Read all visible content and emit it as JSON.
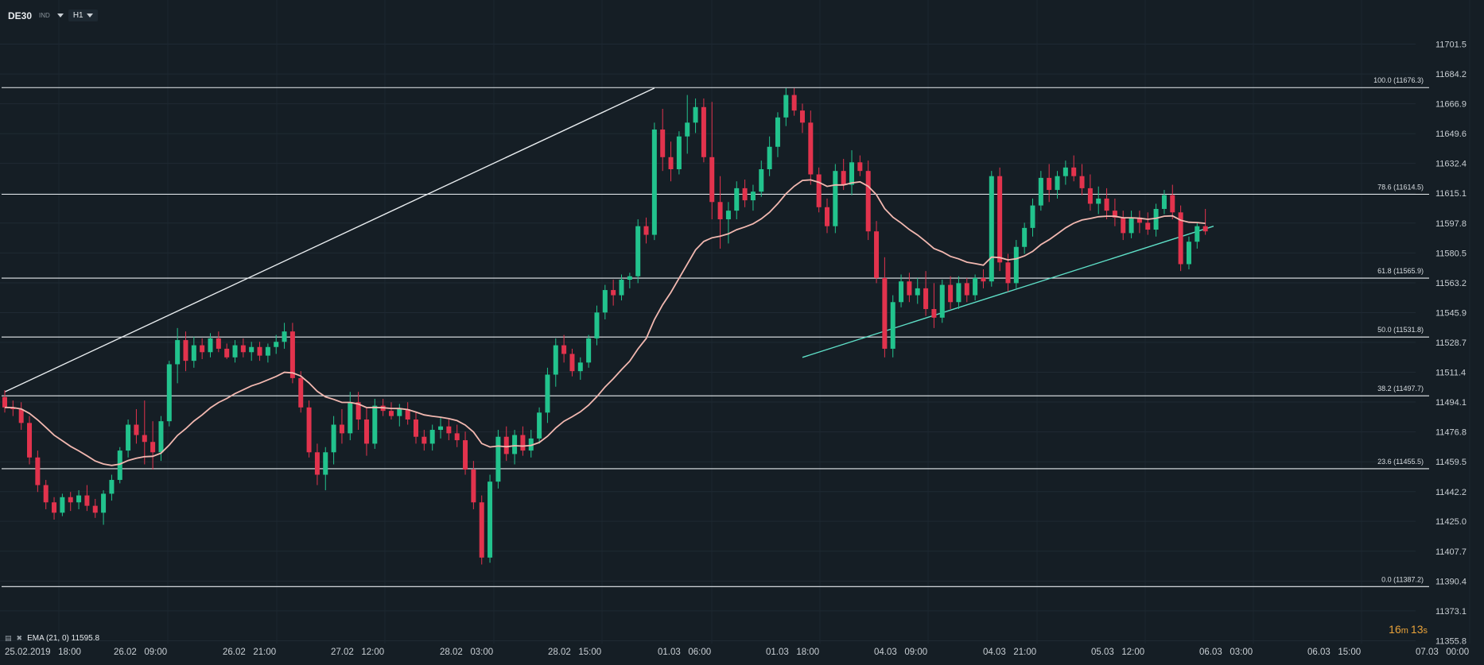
{
  "toolbar": {
    "symbol": "DE30",
    "badge": "IND",
    "timeframe": "H1"
  },
  "indicator": {
    "label": "EMA (21, 0) 11595.8"
  },
  "countdown": {
    "minutes": "16",
    "min_unit": "m",
    "seconds": "13",
    "sec_unit": "s"
  },
  "colors": {
    "background": "#151e25",
    "bull": "#22c38d",
    "bear": "#e2334d",
    "ema": "#f2b8b0",
    "trend_support": "#5fe0c8",
    "lines": "#e8ecef"
  },
  "chart_data": {
    "type": "candlestick",
    "y_ticks": [
      "11701.5",
      "11684.2",
      "11666.9",
      "11649.6",
      "11632.4",
      "11615.1",
      "11597.8",
      "11580.5",
      "11563.2",
      "11545.9",
      "11528.7",
      "11511.4",
      "11494.1",
      "11476.8",
      "11459.5",
      "11442.2",
      "11425.0",
      "11407.7",
      "11390.4",
      "11373.1",
      "11355.8"
    ],
    "ylim": [
      11355.8,
      11701.5
    ],
    "x_labels": [
      "25.02.2019   18:00",
      "26.02   09:00",
      "26.02   21:00",
      "27.02   12:00",
      "28.02   03:00",
      "28.02   15:00",
      "01.03   06:00",
      "01.03   18:00",
      "04.03   09:00",
      "04.03   21:00",
      "05.03   12:00",
      "06.03   03:00",
      "06.03   15:00",
      "07.03   00:00"
    ],
    "fibonacci": [
      {
        "label": "100.0 (11676.3)",
        "value": 11676.3
      },
      {
        "label": "78.6 (11614.5)",
        "value": 11614.5
      },
      {
        "label": "61.8 (11565.9)",
        "value": 11565.9
      },
      {
        "label": "50.0 (11531.8)",
        "value": 11531.8
      },
      {
        "label": "38.2 (11497.7)",
        "value": 11497.7
      },
      {
        "label": "23.6 (11455.5)",
        "value": 11455.5
      },
      {
        "label": "0.0 (11387.2)",
        "value": 11387.2
      }
    ],
    "trendlines": [
      {
        "name": "resistance",
        "from": {
          "bar": 0,
          "price": 11500
        },
        "to": {
          "bar": 79,
          "price": 11676
        }
      },
      {
        "name": "support",
        "from": {
          "bar": 97,
          "price": 11520
        },
        "to": {
          "bar": 147,
          "price": 11596
        }
      }
    ],
    "ohlc": [
      [
        11497,
        11501,
        11488,
        11491
      ],
      [
        11491,
        11495,
        11486,
        11490
      ],
      [
        11490,
        11494,
        11478,
        11482
      ],
      [
        11482,
        11486,
        11458,
        11462
      ],
      [
        11462,
        11466,
        11442,
        11446
      ],
      [
        11446,
        11449,
        11432,
        11436
      ],
      [
        11436,
        11439,
        11426,
        11430
      ],
      [
        11430,
        11441,
        11428,
        11439
      ],
      [
        11439,
        11442,
        11431,
        11436
      ],
      [
        11436,
        11443,
        11432,
        11440
      ],
      [
        11440,
        11446,
        11431,
        11434
      ],
      [
        11434,
        11438,
        11427,
        11430
      ],
      [
        11430,
        11443,
        11423,
        11441
      ],
      [
        11441,
        11452,
        11437,
        11449
      ],
      [
        11449,
        11468,
        11447,
        11466
      ],
      [
        11466,
        11484,
        11462,
        11481
      ],
      [
        11481,
        11490,
        11470,
        11475
      ],
      [
        11475,
        11495,
        11458,
        11471
      ],
      [
        11471,
        11483,
        11455,
        11465
      ],
      [
        11465,
        11486,
        11460,
        11483
      ],
      [
        11483,
        11518,
        11480,
        11516
      ],
      [
        11516,
        11537,
        11505,
        11530
      ],
      [
        11530,
        11535,
        11512,
        11518
      ],
      [
        11518,
        11532,
        11514,
        11527
      ],
      [
        11527,
        11531,
        11519,
        11523
      ],
      [
        11523,
        11534,
        11520,
        11531
      ],
      [
        11531,
        11535,
        11523,
        11525
      ],
      [
        11525,
        11528,
        11519,
        11520
      ],
      [
        11520,
        11530,
        11517,
        11527
      ],
      [
        11527,
        11531,
        11520,
        11523
      ],
      [
        11523,
        11529,
        11518,
        11526
      ],
      [
        11526,
        11529,
        11518,
        11521
      ],
      [
        11521,
        11528,
        11517,
        11526
      ],
      [
        11526,
        11533,
        11522,
        11529
      ],
      [
        11529,
        11540,
        11525,
        11535
      ],
      [
        11535,
        11540,
        11505,
        11508
      ],
      [
        11508,
        11512,
        11488,
        11491
      ],
      [
        11491,
        11495,
        11462,
        11465
      ],
      [
        11465,
        11470,
        11446,
        11452
      ],
      [
        11452,
        11468,
        11443,
        11465
      ],
      [
        11465,
        11486,
        11458,
        11481
      ],
      [
        11481,
        11490,
        11470,
        11476
      ],
      [
        11476,
        11500,
        11472,
        11494
      ],
      [
        11494,
        11500,
        11478,
        11484
      ],
      [
        11484,
        11491,
        11463,
        11470
      ],
      [
        11470,
        11496,
        11467,
        11492
      ],
      [
        11492,
        11496,
        11486,
        11489
      ],
      [
        11489,
        11494,
        11484,
        11486
      ],
      [
        11486,
        11493,
        11480,
        11490
      ],
      [
        11490,
        11494,
        11481,
        11484
      ],
      [
        11484,
        11488,
        11470,
        11474
      ],
      [
        11474,
        11478,
        11466,
        11470
      ],
      [
        11470,
        11481,
        11466,
        11478
      ],
      [
        11478,
        11485,
        11473,
        11480
      ],
      [
        11480,
        11484,
        11472,
        11476
      ],
      [
        11476,
        11481,
        11468,
        11472
      ],
      [
        11472,
        11477,
        11452,
        11455
      ],
      [
        11455,
        11460,
        11432,
        11436
      ],
      [
        11436,
        11440,
        11400,
        11404
      ],
      [
        11404,
        11452,
        11401,
        11448
      ],
      [
        11448,
        11478,
        11444,
        11474
      ],
      [
        11474,
        11480,
        11460,
        11464
      ],
      [
        11464,
        11478,
        11458,
        11475
      ],
      [
        11475,
        11480,
        11463,
        11466
      ],
      [
        11466,
        11478,
        11462,
        11473
      ],
      [
        11473,
        11491,
        11470,
        11488
      ],
      [
        11488,
        11514,
        11482,
        11510
      ],
      [
        11510,
        11531,
        11503,
        11527
      ],
      [
        11527,
        11533,
        11517,
        11522
      ],
      [
        11522,
        11525,
        11509,
        11512
      ],
      [
        11512,
        11520,
        11507,
        11517
      ],
      [
        11517,
        11533,
        11514,
        11531
      ],
      [
        11531,
        11550,
        11527,
        11546
      ],
      [
        11546,
        11562,
        11542,
        11559
      ],
      [
        11559,
        11565,
        11550,
        11556
      ],
      [
        11556,
        11568,
        11553,
        11565
      ],
      [
        11565,
        11569,
        11560,
        11567
      ],
      [
        11567,
        11600,
        11563,
        11596
      ],
      [
        11596,
        11601,
        11586,
        11591
      ],
      [
        11591,
        11656,
        11588,
        11652
      ],
      [
        11652,
        11664,
        11628,
        11636
      ],
      [
        11636,
        11645,
        11622,
        11629
      ],
      [
        11629,
        11651,
        11626,
        11648
      ],
      [
        11648,
        11672,
        11638,
        11656
      ],
      [
        11656,
        11670,
        11650,
        11665
      ],
      [
        11665,
        11670,
        11633,
        11636
      ],
      [
        11636,
        11668,
        11600,
        11610
      ],
      [
        11610,
        11625,
        11583,
        11600
      ],
      [
        11600,
        11610,
        11586,
        11605
      ],
      [
        11605,
        11622,
        11600,
        11618
      ],
      [
        11618,
        11623,
        11607,
        11611
      ],
      [
        11611,
        11620,
        11605,
        11616
      ],
      [
        11616,
        11634,
        11613,
        11629
      ],
      [
        11629,
        11648,
        11625,
        11642
      ],
      [
        11642,
        11662,
        11636,
        11659
      ],
      [
        11659,
        11676,
        11654,
        11672
      ],
      [
        11672,
        11676,
        11660,
        11663
      ],
      [
        11663,
        11667,
        11650,
        11656
      ],
      [
        11656,
        11663,
        11620,
        11626
      ],
      [
        11626,
        11630,
        11604,
        11607
      ],
      [
        11607,
        11612,
        11592,
        11596
      ],
      [
        11596,
        11632,
        11592,
        11628
      ],
      [
        11628,
        11635,
        11617,
        11620
      ],
      [
        11620,
        11640,
        11614,
        11633
      ],
      [
        11633,
        11637,
        11625,
        11628
      ],
      [
        11628,
        11634,
        11588,
        11593
      ],
      [
        11593,
        11599,
        11563,
        11566
      ],
      [
        11566,
        11578,
        11520,
        11525
      ],
      [
        11525,
        11556,
        11520,
        11552
      ],
      [
        11552,
        11568,
        11549,
        11564
      ],
      [
        11564,
        11569,
        11552,
        11556
      ],
      [
        11556,
        11566,
        11551,
        11560
      ],
      [
        11560,
        11570,
        11544,
        11548
      ],
      [
        11548,
        11563,
        11537,
        11543
      ],
      [
        11543,
        11565,
        11540,
        11562
      ],
      [
        11562,
        11567,
        11548,
        11552
      ],
      [
        11552,
        11567,
        11548,
        11563
      ],
      [
        11563,
        11566,
        11552,
        11556
      ],
      [
        11556,
        11568,
        11553,
        11566
      ],
      [
        11566,
        11571,
        11560,
        11564
      ],
      [
        11564,
        11628,
        11561,
        11625
      ],
      [
        11625,
        11630,
        11570,
        11575
      ],
      [
        11575,
        11580,
        11558,
        11563
      ],
      [
        11563,
        11588,
        11560,
        11584
      ],
      [
        11584,
        11598,
        11580,
        11595
      ],
      [
        11595,
        11612,
        11590,
        11608
      ],
      [
        11608,
        11628,
        11605,
        11624
      ],
      [
        11624,
        11632,
        11610,
        11617
      ],
      [
        11617,
        11628,
        11612,
        11625
      ],
      [
        11625,
        11634,
        11620,
        11630
      ],
      [
        11630,
        11637,
        11622,
        11625
      ],
      [
        11625,
        11632,
        11614,
        11618
      ],
      [
        11618,
        11626,
        11605,
        11609
      ],
      [
        11609,
        11619,
        11603,
        11612
      ],
      [
        11612,
        11618,
        11600,
        11605
      ],
      [
        11605,
        11612,
        11596,
        11601
      ],
      [
        11601,
        11605,
        11588,
        11592
      ],
      [
        11592,
        11605,
        11589,
        11601
      ],
      [
        11601,
        11605,
        11592,
        11598
      ],
      [
        11598,
        11604,
        11591,
        11594
      ],
      [
        11594,
        11609,
        11590,
        11606
      ],
      [
        11606,
        11617,
        11603,
        11614
      ],
      [
        11614,
        11620,
        11600,
        11604
      ],
      [
        11604,
        11608,
        11570,
        11574
      ],
      [
        11574,
        11590,
        11571,
        11587
      ],
      [
        11587,
        11598,
        11583,
        11596
      ],
      [
        11596,
        11606,
        11591,
        11593
      ]
    ],
    "ema": {
      "name": "EMA (21, 0)",
      "period": 21
    }
  }
}
